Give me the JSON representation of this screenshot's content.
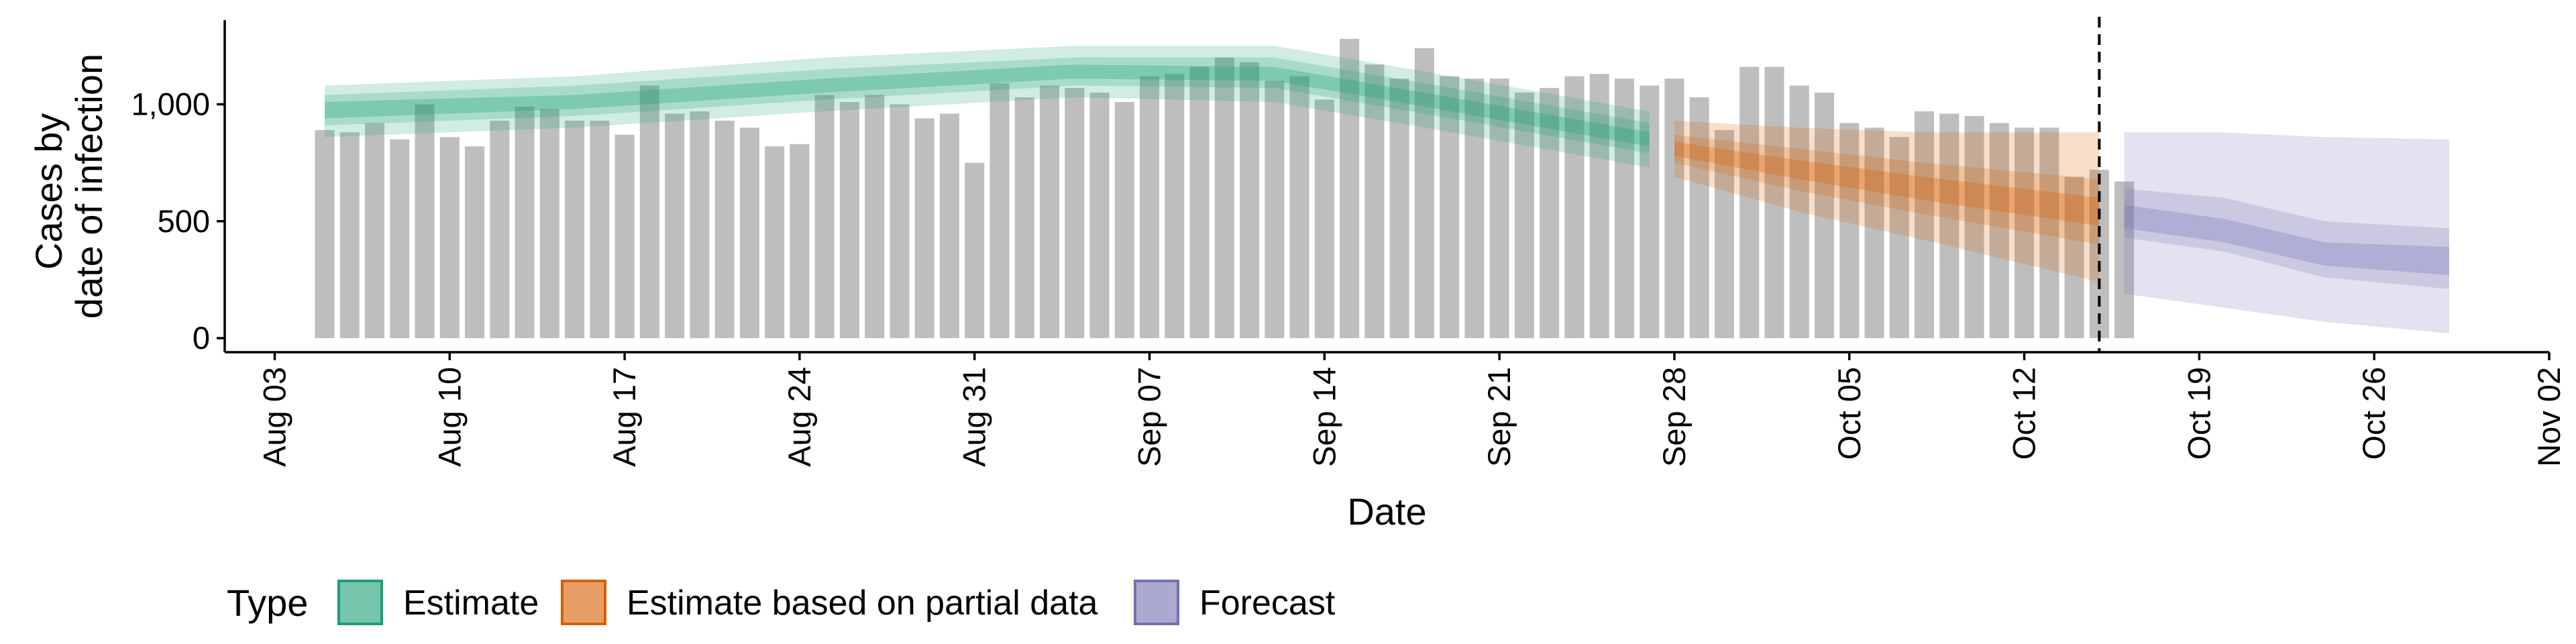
{
  "chart_data": {
    "type": "bar",
    "xlabel": "Date",
    "ylabel_lines": [
      "Cases by",
      "date of infection"
    ],
    "x_ticks": [
      "Aug 03",
      "Aug 10",
      "Aug 17",
      "Aug 24",
      "Aug 31",
      "Sep 07",
      "Sep 14",
      "Sep 21",
      "Sep 28",
      "Oct 05",
      "Oct 12",
      "Oct 19",
      "Oct 26",
      "Nov 02"
    ],
    "x_tick_dates": [
      "2020-08-03",
      "2020-08-10",
      "2020-08-17",
      "2020-08-24",
      "2020-08-31",
      "2020-09-07",
      "2020-09-14",
      "2020-09-21",
      "2020-09-28",
      "2020-10-05",
      "2020-10-12",
      "2020-10-19",
      "2020-10-26",
      "2020-11-02"
    ],
    "y_ticks": [
      0,
      500,
      1000
    ],
    "y_tick_labels": [
      "0",
      "500",
      "1,000"
    ],
    "xlim": [
      "2020-08-01",
      "2020-11-02"
    ],
    "ylim": [
      -60,
      1360
    ],
    "grid": false,
    "vline_date": "2020-10-15",
    "bar_color": "#bebebe",
    "bars": {
      "start": "2020-08-05",
      "values": [
        890,
        880,
        920,
        850,
        1000,
        860,
        820,
        930,
        990,
        980,
        930,
        930,
        870,
        1080,
        960,
        970,
        930,
        900,
        820,
        830,
        1040,
        1010,
        1040,
        1000,
        940,
        960,
        750,
        1090,
        1030,
        1080,
        1070,
        1050,
        1010,
        1120,
        1130,
        1160,
        1200,
        1180,
        1100,
        1120,
        1020,
        1280,
        1170,
        1110,
        1240,
        1120,
        1110,
        1110,
        1050,
        1070,
        1120,
        1130,
        1110,
        1080,
        1110,
        1030,
        890,
        1160,
        1160,
        1080,
        1050,
        920,
        900,
        860,
        970,
        960,
        950,
        920,
        900,
        900,
        690,
        720,
        670
      ]
    },
    "series": [
      {
        "name": "Estimate",
        "color": "#1b9e77",
        "x_start": "2020-08-05",
        "x_end": "2020-09-27",
        "knots": [
          0,
          10,
          20,
          30,
          38,
          44,
          53
        ],
        "median": [
          970,
          1010,
          1080,
          1140,
          1130,
          1020,
          850
        ],
        "inner": [
          [
            940,
            1010
          ],
          [
            980,
            1040
          ],
          [
            1050,
            1110
          ],
          [
            1110,
            1170
          ],
          [
            1100,
            1160
          ],
          [
            990,
            1050
          ],
          [
            820,
            880
          ]
        ],
        "mid": [
          [
            910,
            1040
          ],
          [
            950,
            1080
          ],
          [
            1020,
            1150
          ],
          [
            1080,
            1200
          ],
          [
            1070,
            1200
          ],
          [
            960,
            1090
          ],
          [
            790,
            920
          ]
        ],
        "outer": [
          [
            860,
            1080
          ],
          [
            900,
            1120
          ],
          [
            970,
            1200
          ],
          [
            1030,
            1250
          ],
          [
            1010,
            1250
          ],
          [
            900,
            1140
          ],
          [
            730,
            970
          ]
        ]
      },
      {
        "name": "Estimate based on partial data",
        "color": "#d95f02",
        "x_start": "2020-09-28",
        "x_end": "2020-10-15",
        "knots": [
          0,
          5,
          10,
          17
        ],
        "median": [
          810,
          720,
          640,
          540
        ],
        "inner": [
          [
            780,
            840
          ],
          [
            680,
            760
          ],
          [
            590,
            690
          ],
          [
            480,
            600
          ]
        ],
        "mid": [
          [
            750,
            870
          ],
          [
            630,
            810
          ],
          [
            530,
            750
          ],
          [
            400,
            680
          ]
        ],
        "outer": [
          [
            690,
            930
          ],
          [
            540,
            900
          ],
          [
            420,
            880
          ],
          [
            240,
            880
          ]
        ]
      },
      {
        "name": "Forecast",
        "color": "#7570b3",
        "x_start": "2020-10-16",
        "x_end": "2020-10-29",
        "knots": [
          0,
          4,
          8,
          13
        ],
        "median": [
          520,
          460,
          360,
          330
        ],
        "inner": [
          [
            470,
            570
          ],
          [
            410,
            510
          ],
          [
            310,
            410
          ],
          [
            270,
            390
          ]
        ],
        "mid": [
          [
            430,
            640
          ],
          [
            370,
            600
          ],
          [
            260,
            500
          ],
          [
            210,
            470
          ]
        ],
        "outer": [
          [
            190,
            880
          ],
          [
            130,
            880
          ],
          [
            70,
            860
          ],
          [
            20,
            850
          ]
        ]
      }
    ],
    "legend": {
      "title": "Type",
      "position": "bottom",
      "items": [
        "Estimate",
        "Estimate based on partial data",
        "Forecast"
      ]
    }
  }
}
